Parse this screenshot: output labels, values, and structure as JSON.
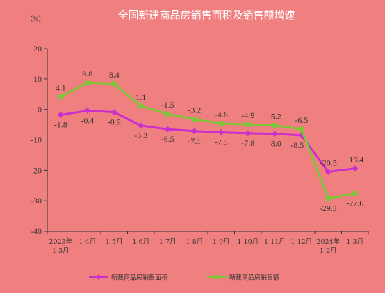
{
  "chart_data": {
    "type": "line",
    "title": "全国新建商品房销售面积及销售额增速",
    "unit_label": "（%）",
    "ylim": [
      -40,
      20
    ],
    "yticks": [
      20,
      10,
      0,
      -10,
      -20,
      -30,
      -40
    ],
    "grid": false,
    "legend_position": "bottom",
    "categories": [
      [
        "2023年",
        "1-3月"
      ],
      [
        "1-4月"
      ],
      [
        "1-5月"
      ],
      [
        "1-6月"
      ],
      [
        "1-7月"
      ],
      [
        "1-8月"
      ],
      [
        "1-9月"
      ],
      [
        "1-10月"
      ],
      [
        "1-11月"
      ],
      [
        "1-12月"
      ],
      [
        "2024年",
        "1-2月"
      ],
      [
        "1-3月"
      ]
    ],
    "series": [
      {
        "name": "新建商品房销售面积",
        "color": "#cc2ecc",
        "marker": "diamond",
        "values": [
          -1.8,
          -0.4,
          -0.9,
          -5.3,
          -6.5,
          -7.1,
          -7.5,
          -7.8,
          -8.0,
          -8.5,
          -20.5,
          -19.4
        ],
        "labels": [
          "-1.8",
          "-0.4",
          "-0.9",
          "-5.3",
          "-6.5",
          "-7.1",
          "-7.5",
          "-7.8",
          "-8.0",
          "-8.5",
          "-20.5",
          "-19.4"
        ]
      },
      {
        "name": "新建商品房销售额",
        "color": "#7dc63a",
        "marker": "square",
        "values": [
          4.1,
          8.8,
          8.4,
          1.1,
          -1.5,
          -3.2,
          -4.6,
          -4.9,
          -5.2,
          -6.5,
          -29.3,
          -27.6
        ],
        "labels": [
          "4.1",
          "8.8",
          "8.4",
          "1.1",
          "-1.5",
          "-3.2",
          "-4.6",
          "-4.9",
          "-5.2",
          "-6.5",
          "-29.3",
          "-27.6"
        ]
      }
    ]
  }
}
